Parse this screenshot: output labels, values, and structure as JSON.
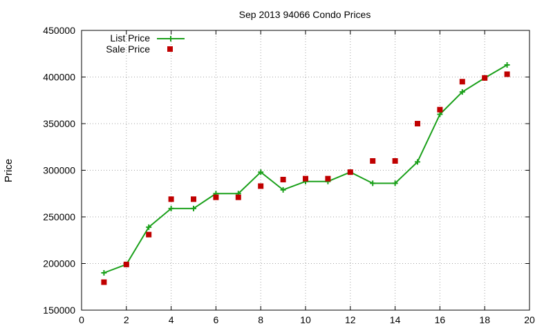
{
  "chart_data": {
    "type": "line",
    "title": "Sep 2013 94066 Condo Prices",
    "xlabel": "",
    "ylabel": "Price",
    "xlim": [
      0,
      20
    ],
    "ylim": [
      150000,
      450000
    ],
    "xticks": [
      "0",
      "2",
      "4",
      "6",
      "8",
      "10",
      "12",
      "14",
      "16",
      "18",
      "20"
    ],
    "yticks": [
      "150000",
      "200000",
      "250000",
      "300000",
      "350000",
      "400000",
      "450000"
    ],
    "grid": true,
    "legend_position": "top-left",
    "series": [
      {
        "name": "List Price",
        "type": "line",
        "marker": "plus",
        "color": "#1aa01a",
        "x": [
          1,
          2,
          3,
          4,
          5,
          6,
          7,
          8,
          9,
          10,
          11,
          12,
          13,
          14,
          15,
          16,
          17,
          18,
          19
        ],
        "y": [
          190000,
          199000,
          239000,
          259000,
          259000,
          275000,
          275000,
          298000,
          279000,
          288000,
          288000,
          298000,
          286000,
          286000,
          309000,
          360000,
          384000,
          399000,
          413000
        ]
      },
      {
        "name": "Sale Price",
        "type": "scatter",
        "marker": "square",
        "color": "#c00000",
        "x": [
          1,
          2,
          3,
          4,
          5,
          6,
          7,
          8,
          9,
          10,
          11,
          12,
          13,
          14,
          15,
          16,
          17,
          18,
          19
        ],
        "y": [
          180000,
          199000,
          231000,
          269000,
          269000,
          271000,
          271000,
          283000,
          290000,
          291000,
          291000,
          298000,
          310000,
          310000,
          350000,
          365000,
          395000,
          399000,
          403000
        ]
      }
    ]
  }
}
